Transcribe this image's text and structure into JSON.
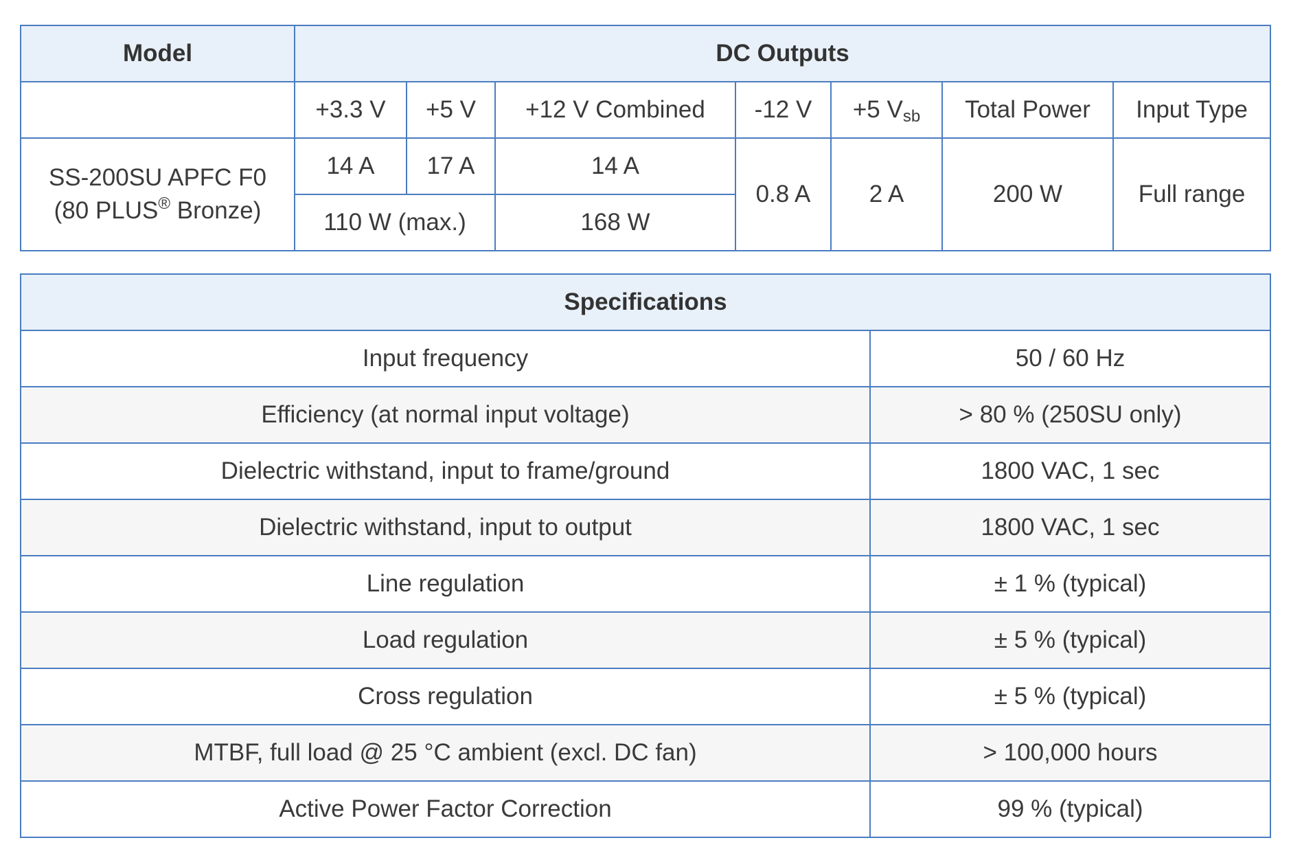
{
  "dc_outputs": {
    "header_model": "Model",
    "header_dc": "DC Outputs",
    "columns": {
      "v33": "+3.3 V",
      "v5": "+5 V",
      "v12": "+12 V Combined",
      "vneg12": "-12 V",
      "vsb_main": "+5 V",
      "vsb_sub": "sb",
      "total": "Total Power",
      "input": "Input Type"
    },
    "model_line1": "SS-200SU APFC F0",
    "model_line2_pre": "(80 PLUS",
    "model_line2_sup": "®",
    "model_line2_post": " Bronze)",
    "values": {
      "a33": "14 A",
      "a5": "17 A",
      "a12": "14 A",
      "w_combined_low": "110 W (max.)",
      "w_12": "168 W",
      "aneg12": "0.8 A",
      "avsb": "2 A",
      "total": "200 W",
      "input": "Full range"
    }
  },
  "specifications": {
    "title": "Specifications",
    "rows": [
      {
        "label": "Input frequency",
        "value": "50 / 60 Hz"
      },
      {
        "label": "Efficiency (at normal input voltage)",
        "value": "> 80 % (250SU only)"
      },
      {
        "label": "Dielectric withstand, input to frame/ground",
        "value": "1800 VAC, 1 sec"
      },
      {
        "label": "Dielectric withstand, input to output",
        "value": "1800 VAC, 1 sec"
      },
      {
        "label": "Line regulation",
        "value": "± 1 % (typical)"
      },
      {
        "label": "Load regulation",
        "value": "± 5 % (typical)"
      },
      {
        "label": "Cross regulation",
        "value": "± 5 % (typical)"
      },
      {
        "label": "MTBF, full load @ 25 °C ambient (excl. DC fan)",
        "value": "> 100,000 hours"
      },
      {
        "label": "Active Power Factor Correction",
        "value": "99 % (typical)"
      }
    ]
  }
}
